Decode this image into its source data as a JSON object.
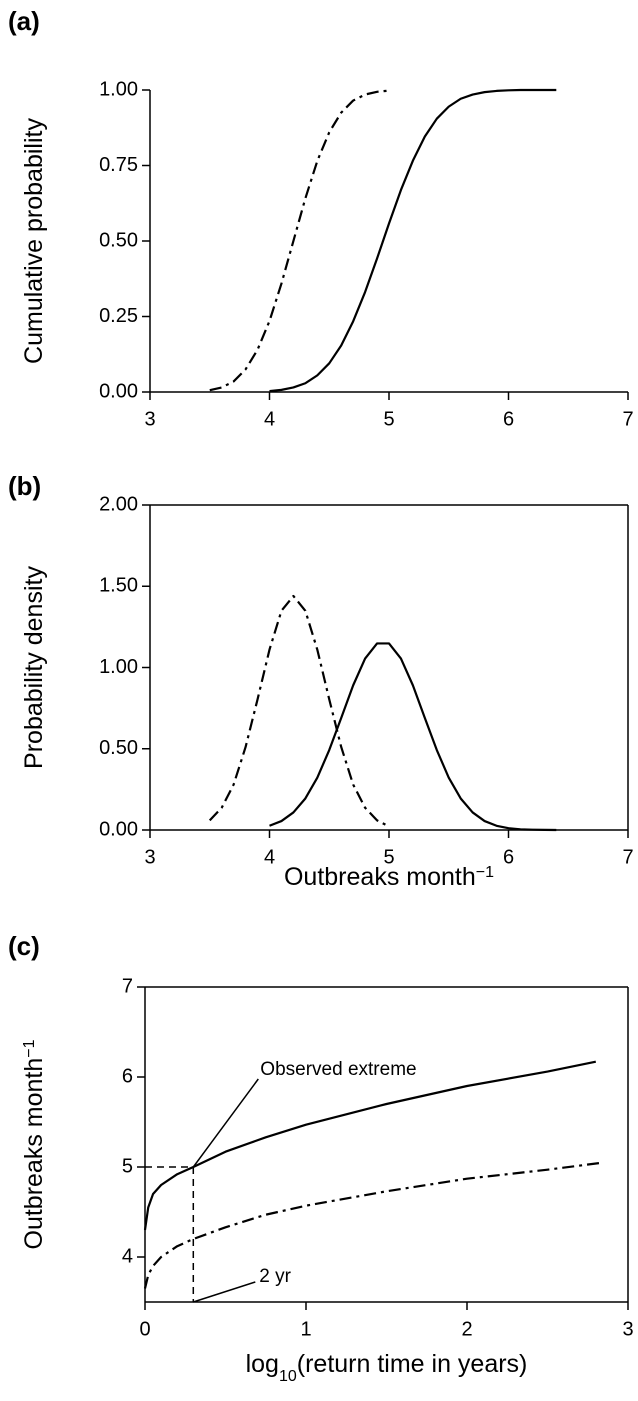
{
  "chart_data": [
    {
      "type": "line",
      "panel_label": "(a)",
      "ylabel": [
        {
          "text": "Cumulative probability"
        }
      ],
      "xlim": [
        3,
        7
      ],
      "xticks": [
        3,
        4,
        5,
        6,
        7
      ],
      "ylim": [
        0,
        1
      ],
      "yticks": [
        {
          "value": 0,
          "label": "0.00"
        },
        {
          "value": 0.25,
          "label": "0.25"
        },
        {
          "value": 0.5,
          "label": "0.50"
        },
        {
          "value": 0.75,
          "label": "0.75"
        },
        {
          "value": 1,
          "label": "1.00"
        }
      ],
      "frame": false,
      "series": [
        {
          "color": "#000000",
          "dash": "solid",
          "x": [
            4.0,
            4.1,
            4.2,
            4.3,
            4.4,
            4.5,
            4.6,
            4.7,
            4.8,
            4.9,
            5.0,
            5.1,
            5.2,
            5.3,
            5.4,
            5.5,
            5.6,
            5.7,
            5.8,
            5.9,
            6.0,
            6.1,
            6.2,
            6.3,
            6.4
          ],
          "values": [
            0.003,
            0.007,
            0.015,
            0.029,
            0.055,
            0.095,
            0.154,
            0.234,
            0.331,
            0.442,
            0.558,
            0.669,
            0.766,
            0.846,
            0.905,
            0.945,
            0.971,
            0.985,
            0.993,
            0.997,
            0.999,
            1.0,
            1.0,
            1.0,
            1.0
          ]
        },
        {
          "color": "#000000",
          "dash": "dash-dot",
          "x": [
            3.5,
            3.6,
            3.7,
            3.8,
            3.9,
            4.0,
            4.1,
            4.2,
            4.3,
            4.4,
            4.5,
            4.6,
            4.7,
            4.8,
            4.9,
            5.0
          ],
          "values": [
            0.006,
            0.015,
            0.035,
            0.075,
            0.14,
            0.235,
            0.359,
            0.5,
            0.641,
            0.765,
            0.86,
            0.925,
            0.965,
            0.985,
            0.994,
            0.998
          ]
        }
      ]
    },
    {
      "type": "line",
      "panel_label": "(b)",
      "ylabel": [
        {
          "text": "Probability density"
        }
      ],
      "xlabel": [
        {
          "text": "Outbreaks month"
        },
        {
          "text": "−1",
          "shift": "super"
        }
      ],
      "xlim": [
        3,
        7
      ],
      "xticks": [
        3,
        4,
        5,
        6,
        7
      ],
      "ylim": [
        0,
        2
      ],
      "yticks": [
        {
          "value": 0,
          "label": "0.00"
        },
        {
          "value": 0.5,
          "label": "0.50"
        },
        {
          "value": 1,
          "label": "1.00"
        },
        {
          "value": 1.5,
          "label": "1.50"
        },
        {
          "value": 2,
          "label": "2.00"
        }
      ],
      "frame": true,
      "series": [
        {
          "color": "#000000",
          "dash": "solid",
          "x": [
            4.0,
            4.1,
            4.2,
            4.3,
            4.4,
            4.5,
            4.6,
            4.7,
            4.8,
            4.9,
            5.0,
            5.1,
            5.2,
            5.3,
            5.4,
            5.5,
            5.6,
            5.7,
            5.8,
            5.9,
            6.0,
            6.1,
            6.2,
            6.3,
            6.4
          ],
          "values": [
            0.026,
            0.055,
            0.108,
            0.194,
            0.322,
            0.492,
            0.689,
            0.89,
            1.055,
            1.148,
            1.148,
            1.055,
            0.89,
            0.689,
            0.492,
            0.322,
            0.194,
            0.108,
            0.055,
            0.026,
            0.011,
            0.004,
            0.002,
            0.001,
            0.0
          ]
        },
        {
          "color": "#000000",
          "dash": "dash-dot",
          "x": [
            3.5,
            3.6,
            3.7,
            3.8,
            3.9,
            4.0,
            4.1,
            4.2,
            4.3,
            4.4,
            4.5,
            4.6,
            4.7,
            4.8,
            4.9,
            5.0
          ],
          "values": [
            0.059,
            0.137,
            0.28,
            0.511,
            0.804,
            1.11,
            1.349,
            1.44,
            1.349,
            1.11,
            0.804,
            0.511,
            0.28,
            0.137,
            0.059,
            0.022
          ]
        }
      ]
    },
    {
      "type": "line",
      "panel_label": "(c)",
      "ylabel": [
        {
          "text": "Outbreaks month"
        },
        {
          "text": "−1",
          "shift": "super"
        }
      ],
      "xlabel": [
        {
          "text": "log"
        },
        {
          "text": "10",
          "shift": "sub"
        },
        {
          "text": "(return time in years)"
        }
      ],
      "xlim": [
        0,
        3
      ],
      "xticks": [
        0,
        1,
        2,
        3
      ],
      "ylim": [
        3.5,
        7
      ],
      "yticks": [
        4,
        5,
        6,
        7
      ],
      "frame": true,
      "series": [
        {
          "color": "#000000",
          "dash": "solid",
          "x": [
            0,
            0.02,
            0.05,
            0.1,
            0.2,
            0.3,
            0.5,
            0.75,
            1,
            1.5,
            2,
            2.5,
            2.8
          ],
          "values": [
            4.3,
            4.55,
            4.7,
            4.8,
            4.92,
            5.0,
            5.17,
            5.33,
            5.47,
            5.7,
            5.9,
            6.06,
            6.17
          ]
        },
        {
          "color": "#000000",
          "dash": "dash-dot",
          "x": [
            0,
            0.02,
            0.05,
            0.1,
            0.2,
            0.3,
            0.5,
            0.75,
            1,
            1.5,
            2,
            2.5,
            2.85
          ],
          "values": [
            3.65,
            3.8,
            3.9,
            4.0,
            4.12,
            4.2,
            4.33,
            4.47,
            4.57,
            4.73,
            4.87,
            4.97,
            5.05
          ]
        }
      ],
      "reference": {
        "x": 0.3,
        "y": 5
      },
      "annotations": [
        {
          "text": "Observed extreme"
        },
        {
          "text": "2 yr"
        }
      ]
    }
  ]
}
